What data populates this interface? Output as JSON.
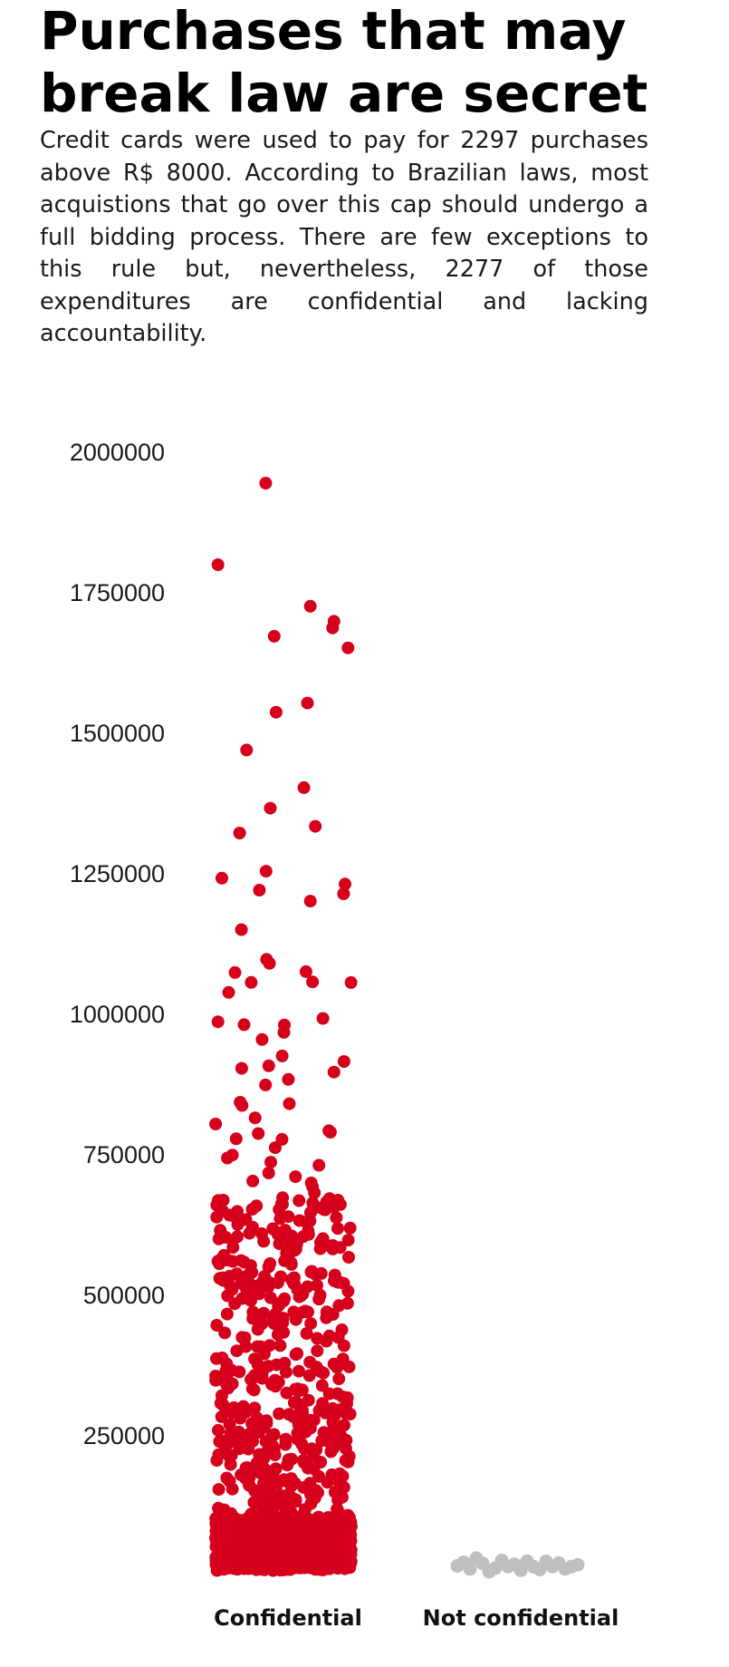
{
  "title": "Purchases that may break law are secret",
  "subtitle": "Credit cards were used to pay for 2297 pur­chases above R$ 8000. According to Brazilian laws, most acquistions that go over this cap should undergo a full bidding process. There are few exceptions to this rule but, neverthe­less, 2277 of those expenditures are confiden­tial and lacking accountability.",
  "colors": {
    "confidential": "#d6001c",
    "not_confidential": "#bfbfbf"
  },
  "chart_data": {
    "type": "scatter",
    "categories": [
      "Confidential",
      "Not confidential"
    ],
    "ylim": [
      0,
      2000000
    ],
    "y_ticks": [
      250000,
      500000,
      750000,
      1000000,
      1250000,
      1500000,
      1750000,
      2000000
    ],
    "grid": false,
    "legend": "none",
    "series": [
      {
        "category": "Confidential",
        "count": 2277,
        "labeled_points": [
          1940000,
          1795000,
          1720000,
          1695000,
          1680000,
          1665000,
          1645000,
          1550000,
          1530000,
          1465000,
          1400000,
          1365000,
          1330000,
          1315000,
          1250000,
          1240000,
          1230000,
          1215000,
          1210000,
          1195000,
          1145000,
          1090000,
          1085000,
          1072000,
          1068000,
          1055000,
          1052000,
          1050000,
          1035000,
          985000,
          982000,
          977000,
          975000,
          962000,
          950000,
          922000,
          910000,
          905000,
          900000,
          890000,
          880000,
          867000,
          837000,
          835000,
          830000,
          810000,
          800000,
          790000,
          785000,
          780000,
          775000,
          770000,
          760000,
          745000,
          740000,
          735000,
          725000,
          715000,
          705000,
          700000,
          695000,
          688000,
          680000,
          660000,
          655000
        ]
      },
      {
        "category": "Not confidential",
        "count": 20,
        "labeled_points": [
          18000,
          25000,
          10000,
          30000,
          22000,
          8000,
          12000,
          28000,
          15000,
          20000,
          9000,
          26000,
          14000,
          11000,
          24000,
          17000,
          21000,
          13000,
          16000,
          19000
        ]
      }
    ]
  }
}
